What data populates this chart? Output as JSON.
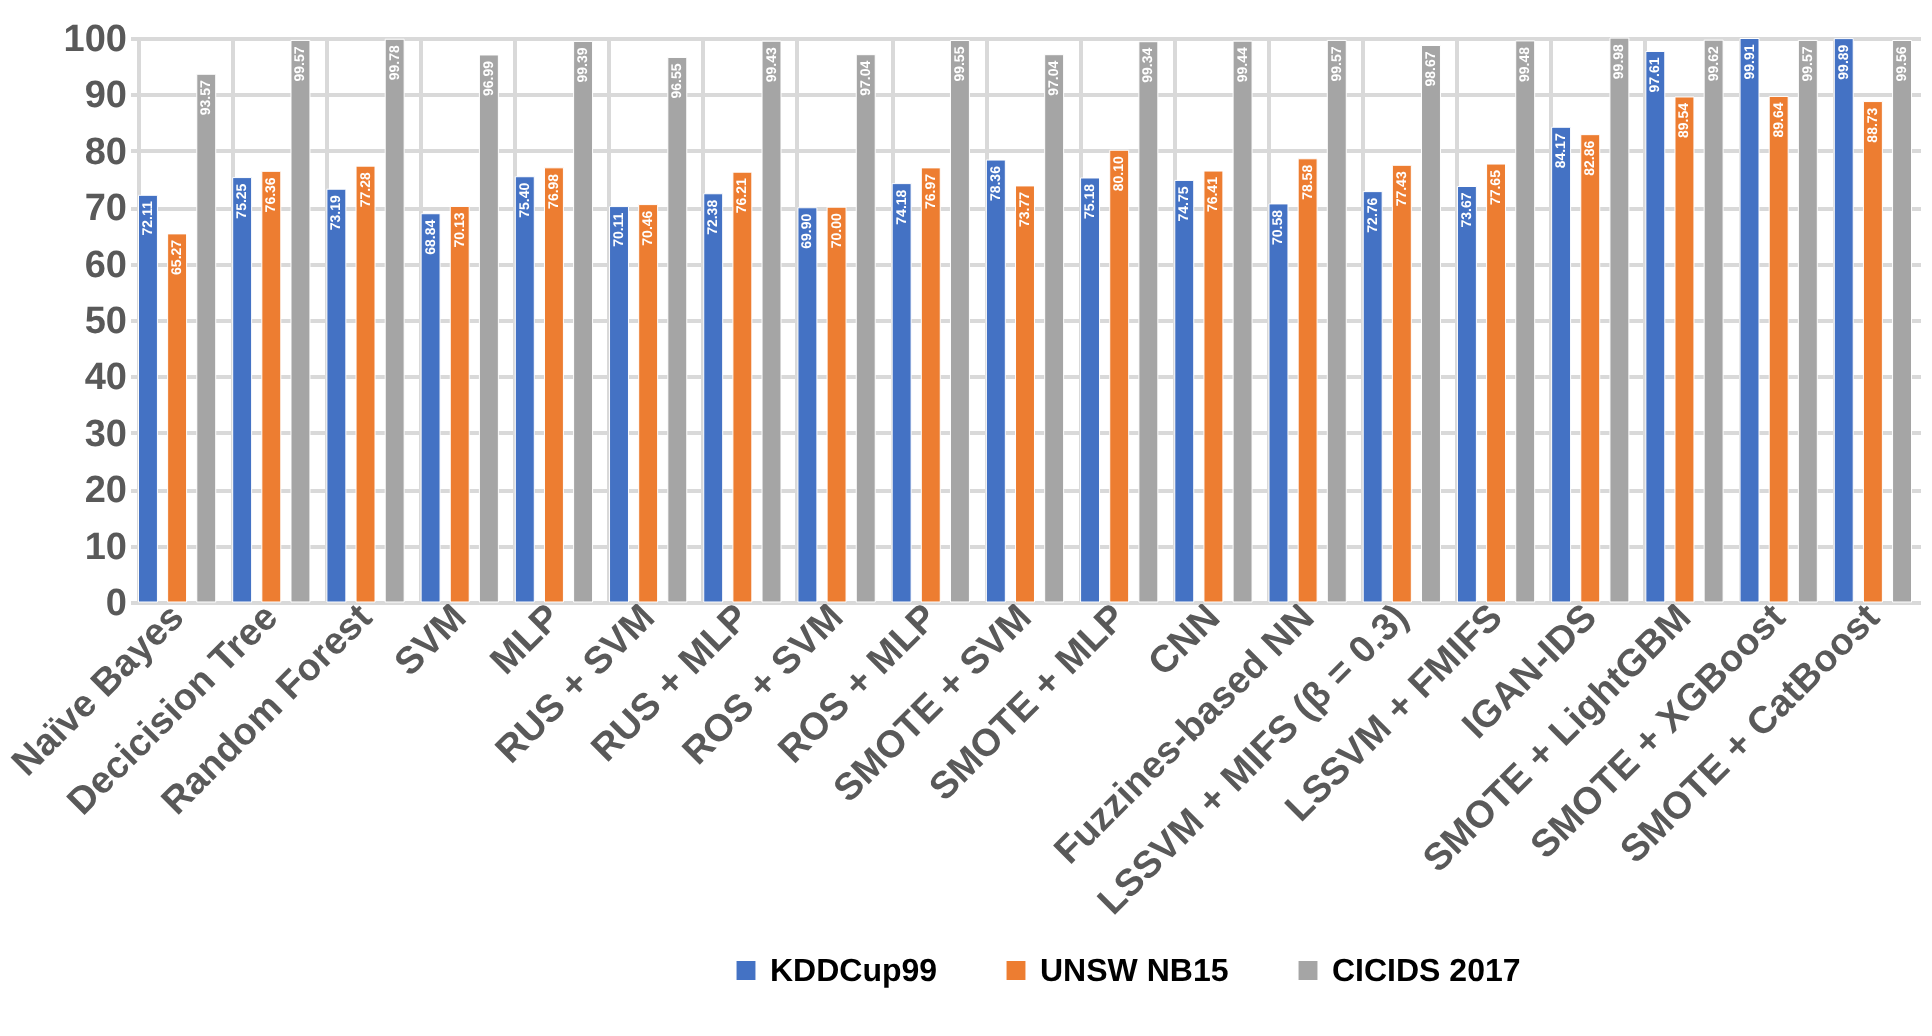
{
  "chart_data": {
    "type": "bar",
    "categories": [
      "Naïve Bayes",
      "Decicision Tree",
      "Random Forest",
      "SVM",
      "MLP",
      "RUS + SVM",
      "RUS + MLP",
      "ROS + SVM",
      "ROS + MLP",
      "SMOTE + SVM",
      "SMOTE + MLP",
      "CNN",
      "Fuzzines-based NN",
      "LSSVM + MIFS (β = 0.3)",
      "LSSVM + FMIFS",
      "IGAN-IDS",
      "SMOTE + LightGBM",
      "SMOTE + XGBoost",
      "SMOTE + CatBoost"
    ],
    "series": [
      {
        "name": "KDDCup99",
        "color": "#4472c4",
        "values": [
          72.11,
          75.25,
          73.19,
          68.84,
          75.4,
          70.11,
          72.38,
          69.9,
          74.18,
          78.36,
          75.18,
          74.75,
          70.58,
          72.76,
          73.67,
          84.17,
          97.61,
          99.91,
          99.89
        ],
        "value_labels": [
          "72.11",
          "75.25",
          "73.19",
          "68.84",
          "75.40",
          "70.11",
          "72.38",
          "69.90",
          "74.18",
          "78.36",
          "75.18",
          "74.75",
          "70.58",
          "72.76",
          "73.67",
          "84.17",
          "97.61",
          "99.91",
          "99.89"
        ]
      },
      {
        "name": "UNSW NB15",
        "color": "#ed7d31",
        "values": [
          65.27,
          76.36,
          77.28,
          70.13,
          76.98,
          70.46,
          76.21,
          70.0,
          76.97,
          73.77,
          80.1,
          76.41,
          78.58,
          77.43,
          77.65,
          82.86,
          89.54,
          89.64,
          88.73
        ],
        "value_labels": [
          "65.27",
          "76.36",
          "77.28",
          "70.13",
          "76.98",
          "70.46",
          "76.21",
          "70.00",
          "76.97",
          "73.77",
          "80.10",
          "76.41",
          "78.58",
          "77.43",
          "77.65",
          "82.86",
          "89.54",
          "89.64",
          "88.73"
        ]
      },
      {
        "name": "CICIDS 2017",
        "color": "#a5a5a5",
        "values": [
          93.57,
          99.57,
          99.78,
          96.99,
          99.39,
          96.55,
          99.43,
          97.04,
          99.55,
          97.04,
          99.34,
          99.44,
          99.57,
          98.67,
          99.48,
          99.98,
          99.62,
          99.57,
          99.56
        ],
        "value_labels": [
          "93.57",
          "99.57",
          "99.78",
          "96.99",
          "99.39",
          "96.55",
          "99.43",
          "97.04",
          "99.55",
          "97.04",
          "99.34",
          "99.44",
          "99.57",
          "98.67",
          "99.48",
          "99.98",
          "99.62",
          "99.57",
          "99.56"
        ]
      }
    ],
    "ylim": [
      0,
      100
    ],
    "yticks": [
      0,
      10,
      20,
      30,
      40,
      50,
      60,
      70,
      80,
      90,
      100
    ],
    "grid": true,
    "legend": "bottom",
    "data_labels": true
  }
}
